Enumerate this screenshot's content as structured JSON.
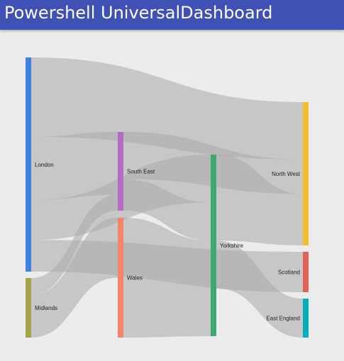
{
  "header": {
    "title": "Powershell UniversalDashboard",
    "bar_color": "#3f51b5",
    "title_color": "#ffffff"
  },
  "chart_data": {
    "type": "sankey",
    "title": "",
    "nodes": [
      {
        "id": "london",
        "label": "London",
        "color": "#3e83e0"
      },
      {
        "id": "midlands",
        "label": "Midlands",
        "color": "#a6a44b"
      },
      {
        "id": "south_east",
        "label": "South East",
        "color": "#b46bc5"
      },
      {
        "id": "wales",
        "label": "Wales",
        "color": "#f38568"
      },
      {
        "id": "yorkshire",
        "label": "Yorkshire",
        "color": "#3ea873"
      },
      {
        "id": "north_west",
        "label": "North West",
        "color": "#f4bb2e"
      },
      {
        "id": "scotland",
        "label": "Scotland",
        "color": "#e2625a"
      },
      {
        "id": "east_england",
        "label": "East England",
        "color": "#00aebc"
      }
    ],
    "links": [
      {
        "source": "london",
        "target": "north_west",
        "value": 10
      },
      {
        "source": "london",
        "target": "south_east",
        "value": 8
      },
      {
        "source": "london",
        "target": "yorkshire",
        "value": 5
      },
      {
        "source": "london",
        "target": "scotland",
        "value": 4
      },
      {
        "source": "midlands",
        "target": "south_east",
        "value": 2
      },
      {
        "source": "midlands",
        "target": "wales",
        "value": 5
      },
      {
        "source": "south_east",
        "target": "north_west",
        "value": 6
      },
      {
        "source": "south_east",
        "target": "yorkshire",
        "value": 4
      },
      {
        "source": "wales",
        "target": "yorkshire",
        "value": 10
      },
      {
        "source": "yorkshire",
        "target": "north_west",
        "value": 9
      },
      {
        "source": "yorkshire",
        "target": "east_england",
        "value": 5
      }
    ],
    "link_color": "#a9a9a9"
  }
}
